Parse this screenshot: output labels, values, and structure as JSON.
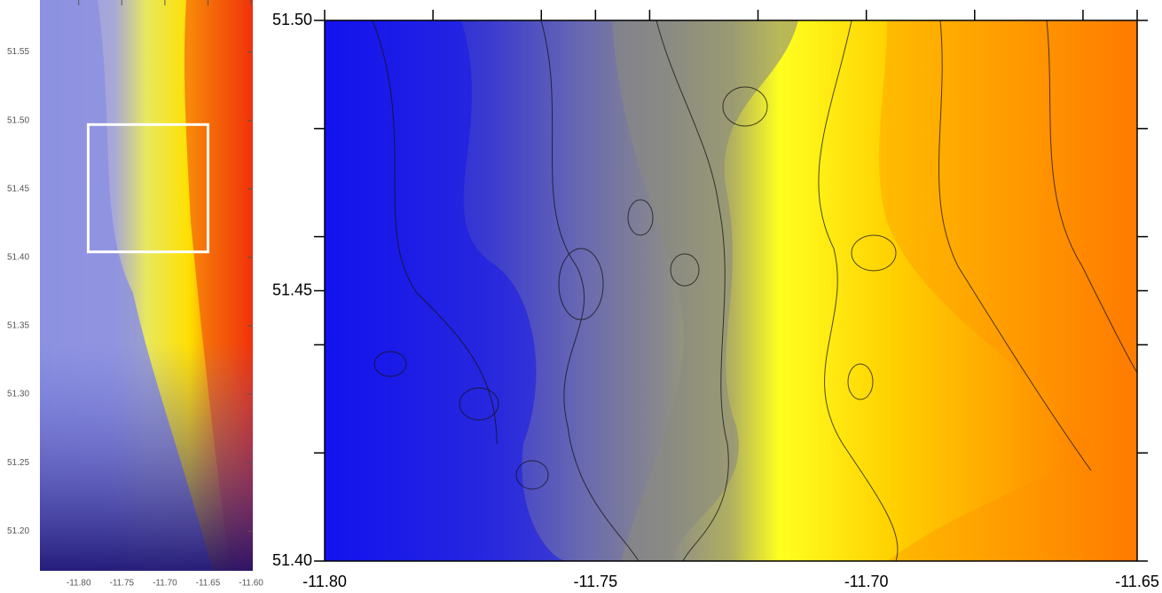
{
  "inset_map": {
    "xlim": [
      -11.845,
      -11.598
    ],
    "ylim": [
      51.171,
      51.588
    ],
    "xticks": [
      {
        "value": -11.8,
        "label": "-11.80"
      },
      {
        "value": -11.75,
        "label": "-11.75"
      },
      {
        "value": -11.7,
        "label": "-11.70"
      },
      {
        "value": -11.65,
        "label": "-11.65"
      },
      {
        "value": -11.6,
        "label": "-11.60"
      }
    ],
    "yticks": [
      {
        "value": 51.55,
        "label": "51.55"
      },
      {
        "value": 51.5,
        "label": "51.50"
      },
      {
        "value": 51.45,
        "label": "51.45"
      },
      {
        "value": 51.4,
        "label": "51.40"
      },
      {
        "value": 51.35,
        "label": "51.35"
      },
      {
        "value": 51.3,
        "label": "51.30"
      },
      {
        "value": 51.25,
        "label": "51.25"
      },
      {
        "value": 51.2,
        "label": "51.20"
      }
    ],
    "highlight_box": {
      "xlim": [
        -11.789,
        -11.65
      ],
      "ylim": [
        51.404,
        51.497
      ]
    }
  },
  "main_map": {
    "xlim": [
      -11.8,
      -11.65
    ],
    "ylim": [
      51.4,
      51.5
    ],
    "xticks": [
      {
        "value": -11.8,
        "label": "-11.80"
      },
      {
        "value": -11.75,
        "label": "-11.75"
      },
      {
        "value": -11.7,
        "label": "-11.70"
      },
      {
        "value": -11.65,
        "label": "-11.65"
      }
    ],
    "yticks": [
      {
        "value": 51.5,
        "label": "51.50"
      },
      {
        "value": 51.45,
        "label": "51.45"
      },
      {
        "value": 51.4,
        "label": "51.40"
      }
    ],
    "minor_xticks": [
      -11.78,
      -11.76,
      -11.74,
      -11.72,
      -11.68,
      -11.66
    ],
    "minor_yticks": [
      51.48,
      51.46,
      51.44,
      51.42
    ]
  }
}
